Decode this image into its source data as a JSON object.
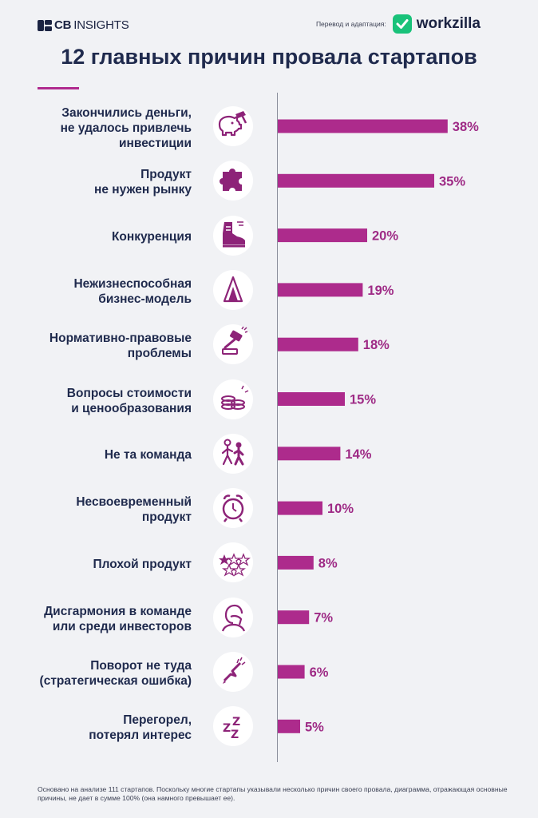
{
  "header": {
    "logo_text_bold": "CB",
    "logo_text": "INSIGHTS",
    "credit_label": "Перевод и адаптация:",
    "credit_brand": "workzilla"
  },
  "title": "12 главных причин провала стартапов",
  "chart_data": {
    "type": "bar",
    "orientation": "horizontal",
    "categories": [
      [
        "Закончились деньги,",
        "не удалось привлечь",
        "инвестиции"
      ],
      [
        "Продукт",
        "не нужен рынку"
      ],
      [
        "Конкуренция"
      ],
      [
        "Нежизнеспособная",
        "бизнес-модель"
      ],
      [
        "Нормативно-правовые",
        "проблемы"
      ],
      [
        "Вопросы стоимости",
        "и ценообразования"
      ],
      [
        "Не та команда"
      ],
      [
        "Несвоевременный",
        "продукт"
      ],
      [
        "Плохой продукт"
      ],
      [
        "Дисгармония в команде",
        "или среди инвесторов"
      ],
      [
        "Поворот не туда",
        "(стратегическая ошибка)"
      ],
      [
        "Перегорел,",
        "потерял интерес"
      ]
    ],
    "values": [
      38,
      35,
      20,
      19,
      18,
      15,
      14,
      10,
      8,
      7,
      6,
      5
    ],
    "value_labels": [
      "38%",
      "35%",
      "20%",
      "19%",
      "18%",
      "15%",
      "14%",
      "10%",
      "8%",
      "7%",
      "6%",
      "5%"
    ],
    "icons": [
      "piggy-bank-hammer-icon",
      "puzzle-piece-icon",
      "sneaker-icon",
      "card-house-icon",
      "gavel-icon",
      "coin-stack-icon",
      "walking-people-icon",
      "alarm-clock-icon",
      "star-rating-icon",
      "facepalm-person-icon",
      "broken-arrow-icon",
      "sleep-zzz-icon"
    ],
    "xlim": [
      0,
      40
    ],
    "grid": false,
    "legend": "none"
  },
  "colors": {
    "bar": "#ad2b8c",
    "value_label": "#9e2a85",
    "icon": "#8d2378",
    "title": "#1f2a4d",
    "background": "#f1f2f5",
    "brand_green": "#19c27a"
  },
  "footnote": "Основано на анализе 111 стартапов. Поскольку многие стартапы указывали несколько причин своего провала, диаграмма, отражающая основные причины, не дает в сумме 100% (она намного превышает ее)."
}
